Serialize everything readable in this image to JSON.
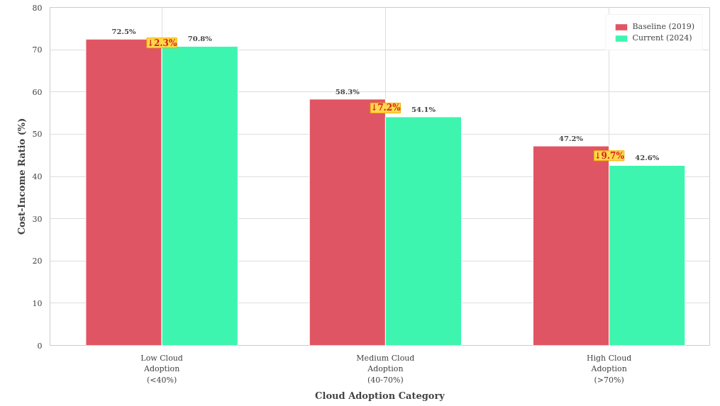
{
  "chart_data": {
    "type": "bar",
    "xlabel": "Cloud Adoption Category",
    "ylabel": "Cost-Income Ratio (%)",
    "categories": [
      "Low Cloud\nAdoption\n(<40%)",
      "Medium Cloud\nAdoption\n(40-70%)",
      "High Cloud\nAdoption\n(>70%)"
    ],
    "series": [
      {
        "name": "Baseline (2019)",
        "color": "#e05563",
        "values": [
          72.5,
          58.3,
          47.2
        ],
        "value_labels": [
          "72.5%",
          "58.3%",
          "47.2%"
        ]
      },
      {
        "name": "Current (2024)",
        "color": "#3ef5b0",
        "values": [
          70.8,
          54.1,
          42.6
        ],
        "value_labels": [
          "70.8%",
          "54.1%",
          "42.6%"
        ]
      }
    ],
    "annotations": [
      {
        "text": "↓2.3%",
        "x": "Low Cloud\nAdoption\n(<40%)",
        "y": 71.6
      },
      {
        "text": "↓7.2%",
        "x": "Medium Cloud\nAdoption\n(40-70%)",
        "y": 56.2
      },
      {
        "text": "↓9.7%",
        "x": "High Cloud\nAdoption\n(>70%)",
        "y": 44.9
      }
    ],
    "ylim": [
      0,
      80
    ],
    "yticks": [
      0,
      10,
      20,
      30,
      40,
      50,
      60,
      70,
      80
    ],
    "grid": true,
    "legend": "top right"
  }
}
